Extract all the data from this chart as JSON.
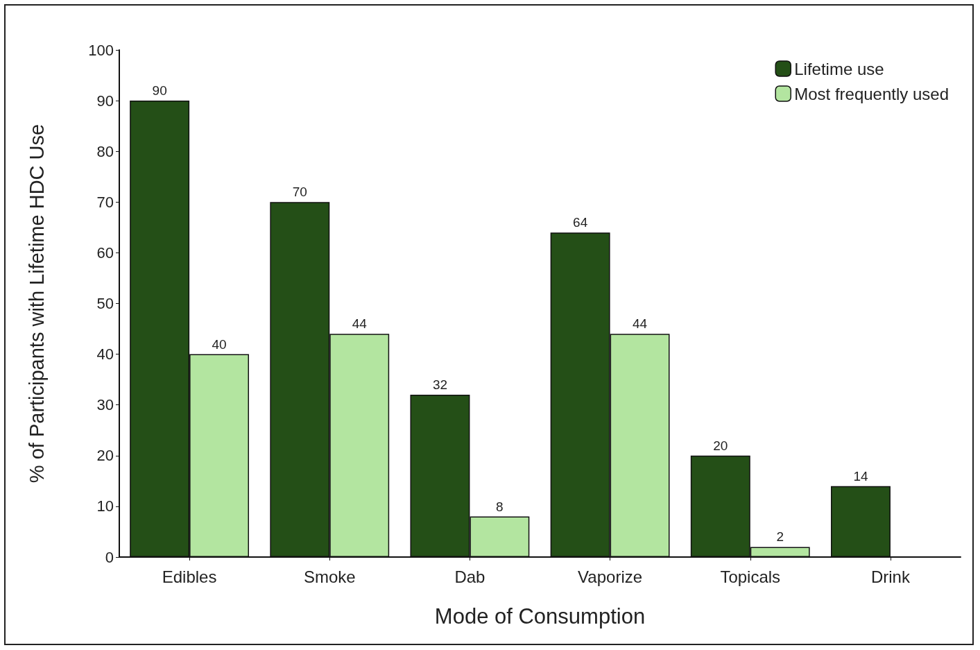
{
  "chart_data": {
    "type": "bar",
    "xlabel": "Mode of Consumption",
    "ylabel": "% of Participants with Lifetime HDC Use",
    "categories": [
      "Edibles",
      "Smoke",
      "Dab",
      "Vaporize",
      "Topicals",
      "Drink"
    ],
    "series": [
      {
        "name": "Lifetime use",
        "color": "#244f17",
        "values": [
          90,
          70,
          32,
          64,
          20,
          14
        ]
      },
      {
        "name": "Most frequently used",
        "color": "#b3e5a0",
        "values": [
          40,
          44,
          8,
          44,
          2,
          null
        ]
      }
    ],
    "ylim": [
      0,
      100
    ],
    "yticks": [
      0,
      10,
      20,
      30,
      40,
      50,
      60,
      70,
      80,
      90,
      100
    ],
    "grid": false,
    "legend": "top right",
    "data_labels": true
  }
}
